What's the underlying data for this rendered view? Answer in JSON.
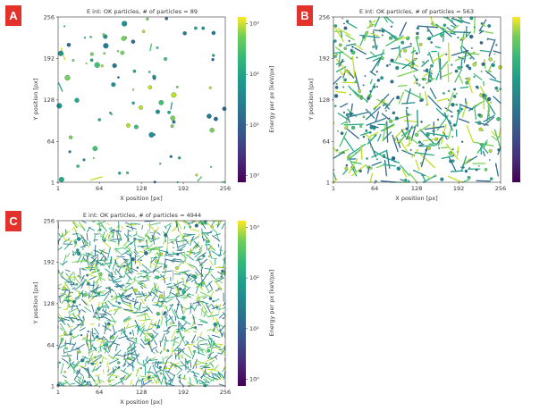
{
  "chart_data": [
    {
      "panel": "A",
      "type": "heatmap",
      "title": "E int: OK particles, # of particles = 89",
      "xlabel": "X position [px]",
      "ylabel": "Y position [px]",
      "xlim": [
        1,
        256
      ],
      "ylim": [
        1,
        256
      ],
      "xticks": [
        "1",
        "64",
        "128",
        "192",
        "256"
      ],
      "yticks": [
        "1",
        "64",
        "128",
        "192",
        "256"
      ],
      "n_particles": 89,
      "pattern": "sparse isolated spots",
      "colorbar": {
        "label": "Energy per px [keV/px]",
        "scale": "log",
        "ticks": [
          "10⁰",
          "10¹",
          "10²",
          "10³"
        ],
        "colormap": "viridis"
      }
    },
    {
      "panel": "B",
      "type": "heatmap",
      "title": "E int: OK particles, # of particles = 563",
      "xlabel": "X position [px]",
      "ylabel": "Y position [px]",
      "xlim": [
        1,
        256
      ],
      "ylim": [
        1,
        256
      ],
      "xticks": [
        "1",
        "64",
        "128",
        "192",
        "256"
      ],
      "yticks": [
        "1",
        "64",
        "128",
        "192",
        "256"
      ],
      "n_particles": 563,
      "pattern": "spots and linear tracks",
      "colorbar": {
        "label": "",
        "scale": "log",
        "ticks": [],
        "colormap": "viridis"
      }
    },
    {
      "panel": "C",
      "type": "heatmap",
      "title": "E int: OK particles, # of particles = 4944",
      "xlabel": "X position [px]",
      "ylabel": "Y position [px]",
      "xlim": [
        1,
        256
      ],
      "ylim": [
        1,
        256
      ],
      "xticks": [
        "1",
        "64",
        "128",
        "192",
        "256"
      ],
      "yticks": [
        "1",
        "64",
        "128",
        "192",
        "256"
      ],
      "n_particles": 4944,
      "pattern": "dense tracks",
      "colorbar": {
        "label": "Energy per px [keV/px]",
        "scale": "log",
        "ticks": [
          "10⁰",
          "10¹",
          "10²",
          "10³"
        ],
        "colormap": "viridis"
      }
    }
  ],
  "badge_color": "#e3322b",
  "background": "#ffffff"
}
